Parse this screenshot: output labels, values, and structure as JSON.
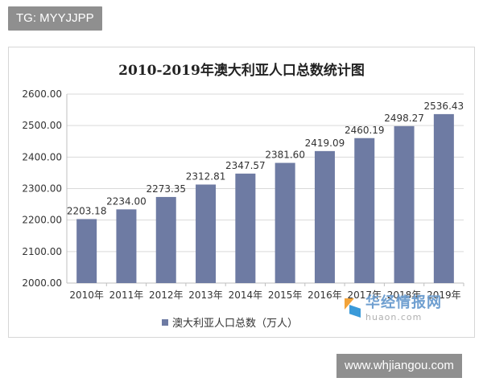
{
  "source_tag": "TG: MYYJJPP",
  "watermark": {
    "name": "华经情报网",
    "domain": "huaon.com"
  },
  "url_tag": "www.whjiangou.com",
  "colors": {
    "bar": "#6e7ba3",
    "gridline": "#d9d9d9",
    "axis": "#bfbfbf"
  },
  "chart_data": {
    "type": "bar",
    "title": "2010-2019年澳大利亚人口总数统计图",
    "categories": [
      "2010年",
      "2011年",
      "2012年",
      "2013年",
      "2014年",
      "2015年",
      "2016年",
      "2017年",
      "2018年",
      "2019年"
    ],
    "series": [
      {
        "name": "澳大利亚人口总数（万人）",
        "values": [
          2203.18,
          2234.0,
          2273.35,
          2312.81,
          2347.57,
          2381.6,
          2419.09,
          2460.19,
          2498.27,
          2536.43
        ]
      }
    ],
    "data_labels": [
      "2203.18",
      "2234.00",
      "2273.35",
      "2312.81",
      "2347.57",
      "2381.60",
      "2419.09",
      "2460.19",
      "2498.27",
      "2536.43"
    ],
    "yticks": [
      "2000.00",
      "2100.00",
      "2200.00",
      "2300.00",
      "2400.00",
      "2500.00",
      "2600.00"
    ],
    "ylim": [
      2000,
      2600
    ],
    "grid": true,
    "legend_position": "bottom"
  }
}
